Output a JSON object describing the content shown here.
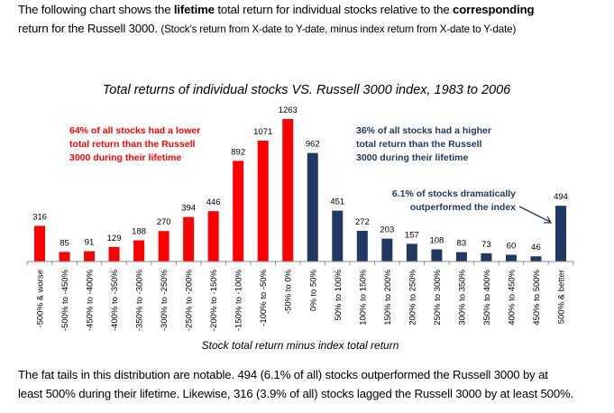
{
  "intro": {
    "part1": "The following chart shows the ",
    "bold1": "lifetime",
    "part2": " total return for individual stocks relative to the ",
    "bold2": "corresponding",
    "part3": " return for the Russell 3000.  ",
    "note": "(Stock’s return from X-date to Y-date, minus index return from X-date to Y-date)"
  },
  "outro": {
    "line1": "The fat tails in this distribution are notable.  494 (6.1% of all) stocks outperformed the Russell 3000 by at",
    "line2": "least 500% during their lifetime.  Likewise, 316 (3.9% of all) stocks lagged the Russell 3000 by at least 500%."
  },
  "chart_data": {
    "type": "bar",
    "title": "Total returns of individual stocks VS. Russell 3000 index, 1983 to 2006",
    "xlabel": "Stock total return minus index total return",
    "ylabel": "",
    "ylim": [
      0,
      1263
    ],
    "grid": false,
    "categories": [
      "-500% & worse",
      "-500% to -450%",
      "-450% to -400%",
      "-400% to -350%",
      "-350% to -300%",
      "-300% to -250%",
      "-250% to -200%",
      "-200% to -150%",
      "-150% to -100%",
      "-100% to -50%",
      "-50% to 0%",
      "0% to 50%",
      "50% to 100%",
      "100% to 150%",
      "150% to 200%",
      "200% to 250%",
      "250% to 300%",
      "300% to 350%",
      "350% to 400%",
      "400% to 450%",
      "450% to 500%",
      "500% & better"
    ],
    "values": [
      316,
      85,
      91,
      129,
      188,
      270,
      394,
      446,
      892,
      1071,
      1263,
      962,
      451,
      272,
      203,
      157,
      108,
      83,
      73,
      60,
      46,
      494
    ],
    "colors": {
      "below_index": "#ff0000",
      "above_index": "#1f3864"
    },
    "split_index": 11,
    "annotations": {
      "left": [
        "64% of all stocks had a lower",
        "total return than the Russell",
        "3000 during their lifetime"
      ],
      "right": [
        "36% of all stocks had a higher",
        "total return than the Russell",
        "3000 during their lifetime"
      ],
      "callout": [
        "6.1% of stocks dramatically",
        "outperformed the index"
      ]
    }
  }
}
